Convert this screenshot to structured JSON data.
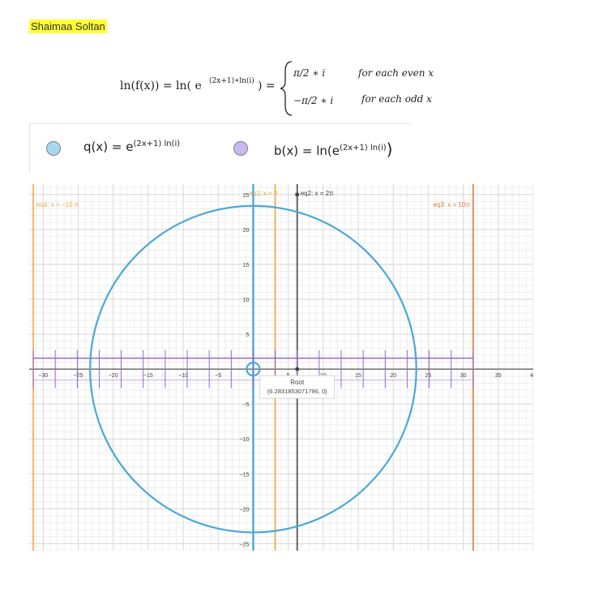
{
  "author": "Shaimaa Soltan",
  "formula": {
    "lhs": "ln(f(x)) = ln( e",
    "lhs_exp": "(2x+1)∗ln(i)",
    "lhs_close": ") =",
    "case1_value": "π/2 ∗ i",
    "case1_condition": "for each even x",
    "case2_value": "−π/2 ∗ i",
    "case2_condition": "for each odd x"
  },
  "expressions": [
    {
      "name": "q(x)",
      "text": "q(x) = e",
      "exp": "(2x+1) ln(i)",
      "swatch_color": "#a7d8ef"
    },
    {
      "name": "b(x)",
      "text": "b(x) = ln(e",
      "exp": "(2x+1) ln(i)",
      "close": ")",
      "swatch_color": "#c7b9ef"
    }
  ],
  "graph": {
    "x_ticks": [
      "−30",
      "−25",
      "−20",
      "−15",
      "−10",
      "−5",
      "5",
      "10",
      "15",
      "20",
      "25",
      "30",
      "35",
      "40"
    ],
    "y_ticks": [
      "25",
      "20",
      "15",
      "10",
      "5",
      "−5",
      "−10",
      "−15",
      "−20",
      "−25"
    ],
    "xlim": [
      -32,
      40
    ],
    "ylim": [
      -26,
      26.5
    ],
    "circle": {
      "cx": 0,
      "cy": 0,
      "r": 23.3,
      "color": "#4aa8d8"
    },
    "small_circle": {
      "cx": 0,
      "cy": 0,
      "r": 0.95,
      "color": "#4aa8d8"
    },
    "vertical_lines": [
      {
        "label": "eq4: x = −10 π",
        "x": -31.416,
        "color": "#f4a640"
      },
      {
        "label": "eq1: x = π",
        "x": 3.1416,
        "color": "#f4a640"
      },
      {
        "label": "eq2: x = 2π",
        "x": 6.2832,
        "color": "#444444"
      },
      {
        "label": "eq3: x = 10π",
        "x": 31.416,
        "color": "#e07a2e"
      }
    ],
    "y_axis_line_color": "#4aa8d8",
    "purple_line": {
      "y": 1.57,
      "color": "#8e6bd0",
      "x_from": -31.4,
      "x_to": 31.4
    },
    "purple_color": "#8e6bd0",
    "root_point": {
      "title": "Root",
      "coords": "(6.2831853071796, 0)",
      "x": 6.2832,
      "y": 0
    }
  }
}
